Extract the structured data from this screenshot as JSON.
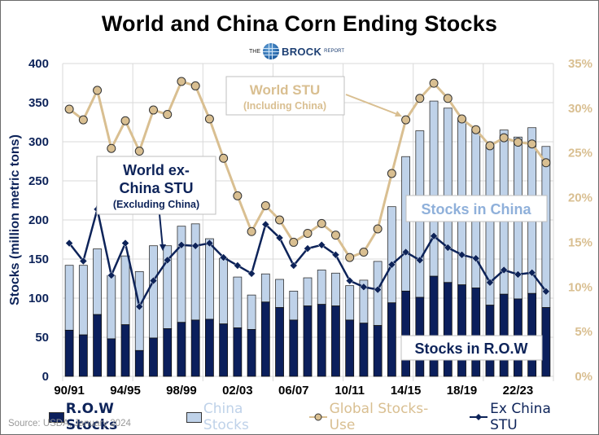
{
  "title": "World and China Corn Ending Stocks",
  "logo": {
    "the": "THE",
    "brand": "BROCK",
    "report": "REPORT"
  },
  "source": "Source: USDA, January 2024",
  "colors": {
    "row": "#0b1f5c",
    "china": "#bfd2e9",
    "global_stu": "#d9bf91",
    "ex_china_stu": "#0d2359",
    "china_label": "#8fb0da"
  },
  "annotations": {
    "world_stu_title": "World STU",
    "world_stu_sub": "(Including China)",
    "exchina_title_1": "World ex-",
    "exchina_title_2": "China STU",
    "exchina_sub": "(Excluding China)",
    "stocks_china": "Stocks in China",
    "stocks_row": "Stocks in R.O.W"
  },
  "legend": [
    {
      "key": "row",
      "label": "R.O.W Stocks"
    },
    {
      "key": "china",
      "label": "China Stocks"
    },
    {
      "key": "global",
      "label": "Global Stocks-Use"
    },
    {
      "key": "exchina",
      "label": "Ex China STU"
    }
  ],
  "chart_data": {
    "type": "bar",
    "stacked": true,
    "title": "World and China Corn Ending Stocks",
    "ylabel": "Stocks (million metric tons)",
    "y2label": "",
    "xlabel": "",
    "ylim": [
      0,
      400
    ],
    "y2lim": [
      0,
      35
    ],
    "yticks": [
      "0",
      "50",
      "100",
      "150",
      "200",
      "250",
      "300",
      "350",
      "400"
    ],
    "y2ticks": [
      "0%",
      "5%",
      "10%",
      "15%",
      "20%",
      "25%",
      "30%",
      "35%"
    ],
    "grid": true,
    "legend_position": "bottom",
    "categories": [
      "90/91",
      "91/92",
      "92/93",
      "93/94",
      "94/95",
      "95/96",
      "96/97",
      "97/98",
      "98/99",
      "99/00",
      "00/01",
      "01/02",
      "02/03",
      "03/04",
      "04/05",
      "05/06",
      "06/07",
      "07/08",
      "08/09",
      "09/10",
      "10/11",
      "11/12",
      "12/13",
      "13/14",
      "14/15",
      "15/16",
      "16/17",
      "17/18",
      "18/19",
      "19/20",
      "20/21",
      "21/22",
      "22/23",
      "23/24",
      "24/25"
    ],
    "tick_labels": [
      "90/91",
      "94/95",
      "98/99",
      "02/03",
      "06/07",
      "10/11",
      "14/15",
      "18/19",
      "22/23"
    ],
    "series": [
      {
        "name": "R.O.W Stocks",
        "type": "bar",
        "axis": "left",
        "values": [
          59,
          53,
          79,
          48,
          66,
          33,
          49,
          61,
          69,
          72,
          73,
          67,
          62,
          60,
          95,
          88,
          72,
          90,
          92,
          90,
          72,
          68,
          65,
          94,
          109,
          101,
          128,
          120,
          117,
          113,
          91,
          105,
          99,
          106,
          88
        ]
      },
      {
        "name": "China Stocks",
        "type": "bar",
        "axis": "left",
        "values": [
          83,
          89,
          84,
          81,
          88,
          101,
          118,
          106,
          123,
          123,
          103,
          84,
          65,
          44,
          36,
          36,
          37,
          36,
          44,
          42,
          44,
          55,
          82,
          123,
          172,
          213,
          224,
          223,
          211,
          202,
          203,
          210,
          207,
          212,
          206
        ]
      },
      {
        "name": "Global Stocks-Use",
        "type": "line",
        "axis": "right",
        "unit": "%",
        "values": [
          29.9,
          28.7,
          32.0,
          25.5,
          28.6,
          25.2,
          29.8,
          29.3,
          33.0,
          32.5,
          28.8,
          24.4,
          20.2,
          16.2,
          19.1,
          17.5,
          15.0,
          16.0,
          17.1,
          15.8,
          13.3,
          13.9,
          16.5,
          22.7,
          28.7,
          31.1,
          32.8,
          31.1,
          28.8,
          27.6,
          25.8,
          26.7,
          26.2,
          26.0,
          23.9
        ]
      },
      {
        "name": "Ex China STU",
        "type": "line",
        "axis": "right",
        "unit": "%",
        "values": [
          14.9,
          12.9,
          18.7,
          11.3,
          14.9,
          7.8,
          10.7,
          13.0,
          14.7,
          14.6,
          14.9,
          13.3,
          12.4,
          11.5,
          17.0,
          15.5,
          12.4,
          14.3,
          14.7,
          13.6,
          10.7,
          10.0,
          9.7,
          12.5,
          13.9,
          13.0,
          15.7,
          14.4,
          13.6,
          13.2,
          10.5,
          11.9,
          11.4,
          11.6,
          9.5
        ]
      }
    ]
  }
}
